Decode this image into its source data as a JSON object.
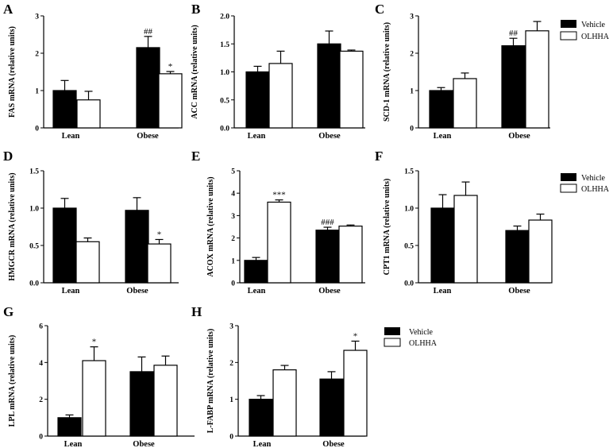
{
  "legend": {
    "vehicle": "Vehicle",
    "olhha": "OLHHA"
  },
  "colors": {
    "vehicle": "#000000",
    "olhha": "#ffffff",
    "axis": "#000000"
  },
  "chart_data": [
    {
      "panel": "A",
      "type": "bar",
      "ylabel": "FAS mRNA (relative units)",
      "categories": [
        "Lean",
        "Obese"
      ],
      "ylim": [
        0,
        3
      ],
      "yticks": [
        "0",
        "1",
        "2",
        "3"
      ],
      "series": [
        {
          "name": "Vehicle",
          "values": [
            1.0,
            2.15
          ],
          "errors": [
            0.27,
            0.3
          ]
        },
        {
          "name": "OLHHA",
          "values": [
            0.75,
            1.45
          ],
          "errors": [
            0.23,
            0.06
          ]
        }
      ],
      "annotations": [
        {
          "series": 0,
          "category": 1,
          "text": "##"
        },
        {
          "series": 1,
          "category": 1,
          "text": "*"
        }
      ]
    },
    {
      "panel": "B",
      "type": "bar",
      "ylabel": "ACC mRNA (relative units)",
      "categories": [
        "Lean",
        "Obese"
      ],
      "ylim": [
        0,
        2
      ],
      "yticks": [
        "0.0",
        "0.5",
        "1.0",
        "1.5",
        "2.0"
      ],
      "series": [
        {
          "name": "Vehicle",
          "values": [
            1.0,
            1.5
          ],
          "errors": [
            0.1,
            0.23
          ]
        },
        {
          "name": "OLHHA",
          "values": [
            1.15,
            1.37
          ],
          "errors": [
            0.22,
            0.02
          ]
        }
      ],
      "annotations": []
    },
    {
      "panel": "C",
      "type": "bar",
      "ylabel": "SCD-1 mRNA (relative units)",
      "categories": [
        "Lean",
        "Obese"
      ],
      "ylim": [
        0,
        3
      ],
      "yticks": [
        "0",
        "1",
        "2",
        "3"
      ],
      "series": [
        {
          "name": "Vehicle",
          "values": [
            1.0,
            2.2
          ],
          "errors": [
            0.08,
            0.2
          ]
        },
        {
          "name": "OLHHA",
          "values": [
            1.32,
            2.6
          ],
          "errors": [
            0.15,
            0.25
          ]
        }
      ],
      "annotations": [
        {
          "series": 0,
          "category": 1,
          "text": "##"
        }
      ]
    },
    {
      "panel": "D",
      "type": "bar",
      "ylabel": "HMGCR mRNA (relative units)",
      "categories": [
        "Lean",
        "Obese"
      ],
      "ylim": [
        0,
        1.5
      ],
      "yticks": [
        "0.0",
        "0.5",
        "1.0",
        "1.5"
      ],
      "series": [
        {
          "name": "Vehicle",
          "values": [
            1.0,
            0.97
          ],
          "errors": [
            0.13,
            0.17
          ]
        },
        {
          "name": "OLHHA",
          "values": [
            0.55,
            0.52
          ],
          "errors": [
            0.05,
            0.06
          ]
        }
      ],
      "annotations": [
        {
          "series": 1,
          "category": 1,
          "text": "*"
        }
      ]
    },
    {
      "panel": "E",
      "type": "bar",
      "ylabel": "ACOX mRNA (relative units)",
      "categories": [
        "Lean",
        "Obese"
      ],
      "ylim": [
        0,
        5
      ],
      "yticks": [
        "0",
        "1",
        "2",
        "3",
        "4",
        "5"
      ],
      "series": [
        {
          "name": "Vehicle",
          "values": [
            1.0,
            2.35
          ],
          "errors": [
            0.13,
            0.13
          ]
        },
        {
          "name": "OLHHA",
          "values": [
            3.6,
            2.53
          ],
          "errors": [
            0.1,
            0.05
          ]
        }
      ],
      "annotations": [
        {
          "series": 1,
          "category": 0,
          "text": "***"
        },
        {
          "series": 0,
          "category": 1,
          "text": "###"
        }
      ]
    },
    {
      "panel": "F",
      "type": "bar",
      "ylabel": "CPT1 mRNA (relative units)",
      "categories": [
        "Lean",
        "Obese"
      ],
      "ylim": [
        0,
        1.5
      ],
      "yticks": [
        "0.0",
        "0.5",
        "1.0",
        "1.5"
      ],
      "series": [
        {
          "name": "Vehicle",
          "values": [
            1.0,
            0.7
          ],
          "errors": [
            0.18,
            0.06
          ]
        },
        {
          "name": "OLHHA",
          "values": [
            1.17,
            0.84
          ],
          "errors": [
            0.18,
            0.08
          ]
        }
      ],
      "annotations": []
    },
    {
      "panel": "G",
      "type": "bar",
      "ylabel": "LPL mRNA (relative units)",
      "categories": [
        "Lean",
        "Obese"
      ],
      "ylim": [
        0,
        6
      ],
      "yticks": [
        "0",
        "2",
        "4",
        "6"
      ],
      "series": [
        {
          "name": "Vehicle",
          "values": [
            1.0,
            3.5
          ],
          "errors": [
            0.15,
            0.8
          ]
        },
        {
          "name": "OLHHA",
          "values": [
            4.1,
            3.85
          ],
          "errors": [
            0.75,
            0.5
          ]
        }
      ],
      "annotations": [
        {
          "series": 1,
          "category": 0,
          "text": "*"
        }
      ]
    },
    {
      "panel": "H",
      "type": "bar",
      "ylabel": "L-FABP mRNA (relative units)",
      "categories": [
        "Lean",
        "Obese"
      ],
      "ylim": [
        0,
        3
      ],
      "yticks": [
        "0",
        "1",
        "2",
        "3"
      ],
      "series": [
        {
          "name": "Vehicle",
          "values": [
            1.0,
            1.55
          ],
          "errors": [
            0.1,
            0.2
          ]
        },
        {
          "name": "OLHHA",
          "values": [
            1.8,
            2.33
          ],
          "errors": [
            0.12,
            0.25
          ]
        }
      ],
      "annotations": [
        {
          "series": 1,
          "category": 1,
          "text": "*"
        }
      ]
    }
  ]
}
